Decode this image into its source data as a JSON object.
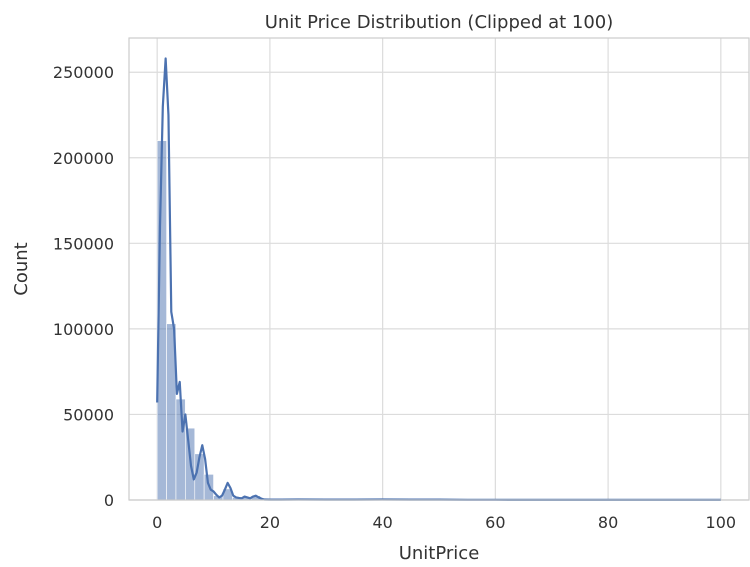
{
  "chart_data": {
    "type": "histogram",
    "title": "Unit Price Distribution (Clipped at 100)",
    "xlabel": "UnitPrice",
    "ylabel": "Count",
    "xlim": [
      -5,
      105
    ],
    "ylim": [
      0,
      270000
    ],
    "x_ticks": [
      0,
      20,
      40,
      60,
      80,
      100
    ],
    "y_ticks": [
      0,
      50000,
      100000,
      150000,
      200000,
      250000
    ],
    "grid": true,
    "bar_color": "#4c72b0",
    "bar_opacity": 0.5,
    "kde_color": "#4c72b0",
    "bins": [
      {
        "x0": 0.0,
        "x1": 1.67,
        "count": 210000
      },
      {
        "x0": 1.67,
        "x1": 3.33,
        "count": 103000
      },
      {
        "x0": 3.33,
        "x1": 5.0,
        "count": 59000
      },
      {
        "x0": 5.0,
        "x1": 6.67,
        "count": 42000
      },
      {
        "x0": 6.67,
        "x1": 8.33,
        "count": 27000
      },
      {
        "x0": 8.33,
        "x1": 10.0,
        "count": 15000
      },
      {
        "x0": 10.0,
        "x1": 11.67,
        "count": 2500
      },
      {
        "x0": 11.67,
        "x1": 13.33,
        "count": 6500
      },
      {
        "x0": 13.33,
        "x1": 15.0,
        "count": 1500
      },
      {
        "x0": 15.0,
        "x1": 16.67,
        "count": 1800
      },
      {
        "x0": 16.67,
        "x1": 18.33,
        "count": 2500
      },
      {
        "x0": 18.33,
        "x1": 20.0,
        "count": 500
      },
      {
        "x0": 20.0,
        "x1": 21.67,
        "count": 200
      },
      {
        "x0": 23.33,
        "x1": 25.0,
        "count": 800
      },
      {
        "x0": 38.33,
        "x1": 40.0,
        "count": 700
      },
      {
        "x0": 48.33,
        "x1": 50.0,
        "count": 500
      }
    ],
    "kde": {
      "x": [
        0,
        0.5,
        1.0,
        1.5,
        2.0,
        2.5,
        3.0,
        3.5,
        4.0,
        4.5,
        5.0,
        5.5,
        6.0,
        6.5,
        7.0,
        7.5,
        8.0,
        8.5,
        9.0,
        9.5,
        10.0,
        10.5,
        11.0,
        11.5,
        12.0,
        12.5,
        13.0,
        13.5,
        14.0,
        14.5,
        15.0,
        15.5,
        16.0,
        16.5,
        17.0,
        17.5,
        18.0,
        18.5,
        19.0,
        20.0,
        22.0,
        25.0,
        30.0,
        35.0,
        40.0,
        45.0,
        50.0,
        55.0,
        60.0,
        70.0,
        80.0,
        90.0,
        100.0
      ],
      "y": [
        57000,
        160000,
        230000,
        258000,
        225000,
        110000,
        100000,
        62000,
        69000,
        40000,
        50000,
        35000,
        20000,
        12000,
        16000,
        25000,
        32000,
        24000,
        10000,
        6000,
        5000,
        3000,
        1500,
        2500,
        6000,
        10000,
        7000,
        2500,
        1500,
        1200,
        1000,
        2000,
        1500,
        1000,
        2000,
        2500,
        1500,
        800,
        300,
        200,
        200,
        300,
        200,
        200,
        300,
        200,
        200,
        100,
        100,
        50,
        50,
        50,
        50
      ]
    }
  }
}
